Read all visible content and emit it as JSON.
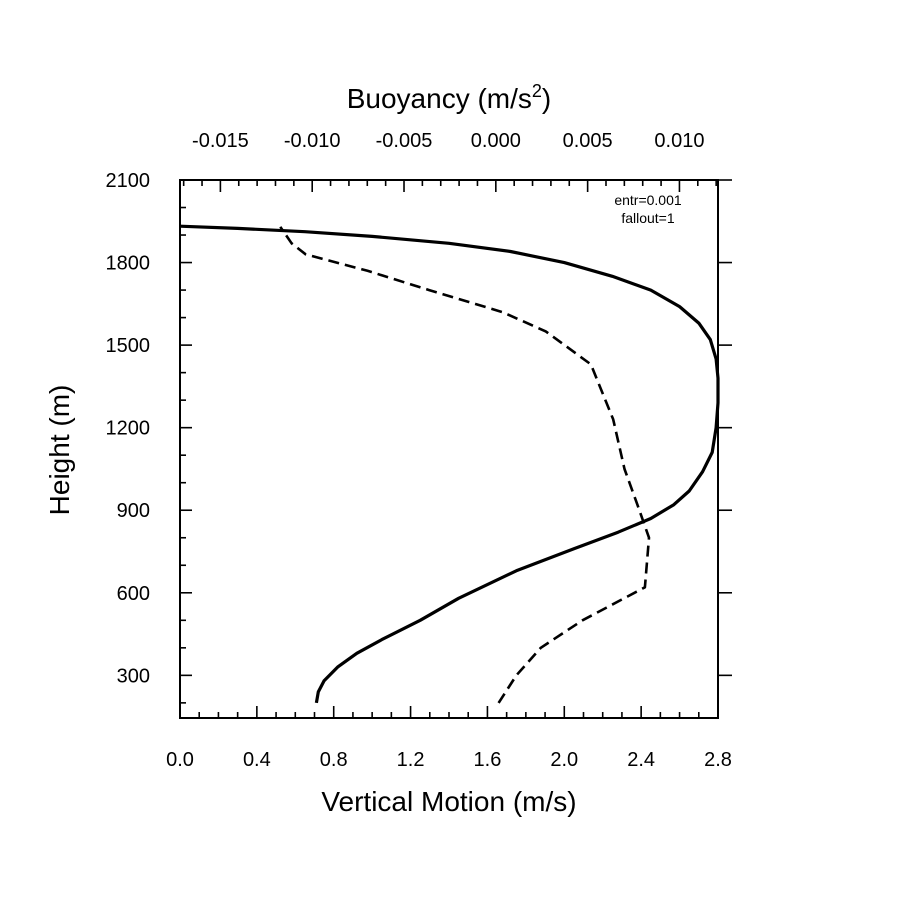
{
  "chart_data": {
    "type": "line",
    "title": "",
    "xlabel": "Vertical Motion (m/s)",
    "xlabel_top": "Buoyancy (m/s²)",
    "xlabel_top_base": "Buoyancy (m/s",
    "xlabel_top_sup": "2",
    "xlabel_top_close": ")",
    "ylabel": "Height (m)",
    "xlim": [
      0.0,
      2.8
    ],
    "xlim_top": [
      -0.0172,
      0.0121
    ],
    "ylim": [
      145,
      2100
    ],
    "xticks": [
      "0.0",
      "0.4",
      "0.8",
      "1.2",
      "1.6",
      "2.0",
      "2.4",
      "2.8"
    ],
    "xticks_values": [
      0.0,
      0.4,
      0.8,
      1.2,
      1.6,
      2.0,
      2.4,
      2.8
    ],
    "xticks_top": [
      "-0.015",
      "-0.010",
      "-0.005",
      "0.000",
      "0.005",
      "0.010"
    ],
    "xticks_top_values": [
      -0.015,
      -0.01,
      -0.005,
      0.0,
      0.005,
      0.01
    ],
    "yticks": [
      "300",
      "600",
      "900",
      "1200",
      "1500",
      "1800",
      "2100"
    ],
    "yticks_values": [
      300,
      600,
      900,
      1200,
      1500,
      1800,
      2100
    ],
    "annotation": [
      "entr=0.001",
      "fallout=1"
    ],
    "grid": false,
    "series": [
      {
        "axis": "bottom",
        "style": "solid",
        "x": [
          0.71,
          0.72,
          0.75,
          0.82,
          0.92,
          1.05,
          1.25,
          1.45,
          1.75,
          2.05,
          2.28,
          2.45,
          2.57,
          2.65,
          2.72,
          2.77,
          2.79,
          2.8,
          2.8,
          2.79,
          2.76,
          2.7,
          2.6,
          2.45,
          2.25,
          2.0,
          1.72,
          1.4,
          1.0,
          0.65,
          0.3,
          0.0
        ],
        "y": [
          200,
          240,
          280,
          330,
          380,
          430,
          500,
          580,
          680,
          760,
          820,
          870,
          920,
          970,
          1040,
          1110,
          1200,
          1290,
          1380,
          1450,
          1520,
          1580,
          1640,
          1700,
          1750,
          1800,
          1840,
          1870,
          1895,
          1912,
          1924,
          1932
        ]
      },
      {
        "axis": "top",
        "style": "dashed",
        "x": [
          0.00015,
          0.00112,
          0.00245,
          0.00472,
          0.00812,
          0.00834,
          0.00771,
          0.00701,
          0.00639,
          0.00518,
          0.00272,
          0.00036,
          -0.00363,
          -0.00699,
          -0.01036,
          -0.01112,
          -0.01174
        ],
        "y": [
          200,
          300,
          400,
          500,
          620,
          800,
          920,
          1050,
          1230,
          1430,
          1550,
          1620,
          1700,
          1770,
          1830,
          1870,
          1930
        ]
      }
    ]
  }
}
